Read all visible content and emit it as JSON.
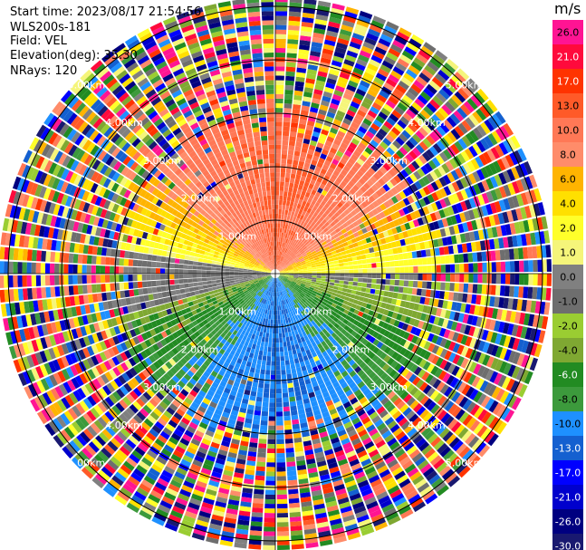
{
  "header": {
    "start_time": "Start time: 2023/08/17 21:54:56",
    "instrument": "WLS200s-181",
    "field": "Field: VEL",
    "elevation": "Elevation(deg): 35.30",
    "nrays": "NRays: 120"
  },
  "colorbar": {
    "unit": "m/s",
    "levels": [
      {
        "label": "26.0",
        "color": "#ff1493"
      },
      {
        "label": "21.0",
        "color": "#ff0a3c"
      },
      {
        "label": "17.0",
        "color": "#ff3300"
      },
      {
        "label": "13.0",
        "color": "#ff5a28"
      },
      {
        "label": "10.0",
        "color": "#ff7856"
      },
      {
        "label": "8.0",
        "color": "#ff8c6a"
      },
      {
        "label": "6.0",
        "color": "#ffb400"
      },
      {
        "label": "4.0",
        "color": "#ffe000"
      },
      {
        "label": "2.0",
        "color": "#ffff2a"
      },
      {
        "label": "1.0",
        "color": "#f5f57a"
      },
      {
        "label": "0.0",
        "color": "#808080"
      },
      {
        "label": "-1.0",
        "color": "#6e6e6e"
      },
      {
        "label": "-2.0",
        "color": "#9acd32"
      },
      {
        "label": "-4.0",
        "color": "#7fa832"
      },
      {
        "label": "-6.0",
        "color": "#228b22"
      },
      {
        "label": "-8.0",
        "color": "#3c9a3c"
      },
      {
        "label": "-10.0",
        "color": "#1e90ff"
      },
      {
        "label": "-13.0",
        "color": "#1460d0"
      },
      {
        "label": "-17.0",
        "color": "#0000ff"
      },
      {
        "label": "-21.0",
        "color": "#0000cd"
      },
      {
        "label": "-26.0",
        "color": "#000080"
      },
      {
        "label": "-30.0",
        "color": "#191970"
      }
    ]
  },
  "chart_data": {
    "type": "ppi",
    "field": "VEL",
    "range_rings_labels": [
      "1.00km",
      "2.00km",
      "3.00km",
      "4.00km",
      "5.00km"
    ],
    "range_rings_km": [
      1,
      2,
      3,
      4,
      5
    ],
    "grid": true,
    "colorbar_placement": "right",
    "description_values": {
      "north_sector_velocity": 13,
      "south_sector_velocity": -10,
      "west_sector_velocity": 0,
      "east_sector_velocity": 2
    }
  }
}
